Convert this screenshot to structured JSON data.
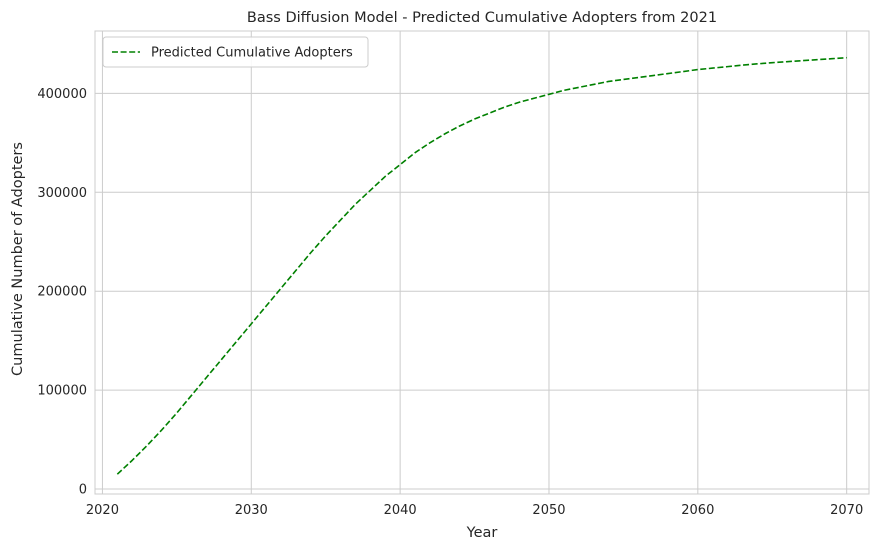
{
  "chart_data": {
    "type": "line",
    "title": "Bass Diffusion Model - Predicted Cumulative Adopters from 2021",
    "xlabel": "Year",
    "ylabel": "Cumulative Number of Adopters",
    "xlim": [
      2019.5,
      2071.5
    ],
    "ylim": [
      -5000,
      463000
    ],
    "x_ticks": [
      2020,
      2030,
      2040,
      2050,
      2060,
      2070
    ],
    "y_ticks": [
      0,
      100000,
      200000,
      300000,
      400000
    ],
    "grid": true,
    "legend": {
      "position": "top-left",
      "entries": [
        "Predicted Cumulative Adopters"
      ]
    },
    "series": [
      {
        "name": "Predicted Cumulative Adopters",
        "color": "#008000",
        "linestyle": "dashed",
        "x": [
          2021,
          2022,
          2023,
          2024,
          2025,
          2026,
          2027,
          2028,
          2029,
          2030,
          2031,
          2032,
          2033,
          2034,
          2035,
          2036,
          2037,
          2038,
          2039,
          2040,
          2041,
          2042,
          2043,
          2044,
          2045,
          2046,
          2047,
          2048,
          2049,
          2050,
          2051,
          2052,
          2053,
          2054,
          2055,
          2056,
          2057,
          2058,
          2059,
          2060,
          2061,
          2062,
          2063,
          2064,
          2065,
          2066,
          2067,
          2068,
          2069,
          2070
        ],
        "y": [
          15000,
          29000,
          44000,
          60000,
          77000,
          95000,
          113000,
          131000,
          149000,
          167000,
          185000,
          203000,
          221000,
          239000,
          256000,
          272000,
          288000,
          302000,
          316000,
          328000,
          340000,
          350000,
          359000,
          367000,
          374000,
          380000,
          386000,
          391000,
          395000,
          399000,
          403000,
          406000,
          409000,
          412000,
          414000,
          416000,
          418000,
          420000,
          422000,
          424000,
          425500,
          427000,
          428500,
          429800,
          431000,
          432000,
          433000,
          434000,
          435000,
          436000
        ]
      }
    ]
  }
}
